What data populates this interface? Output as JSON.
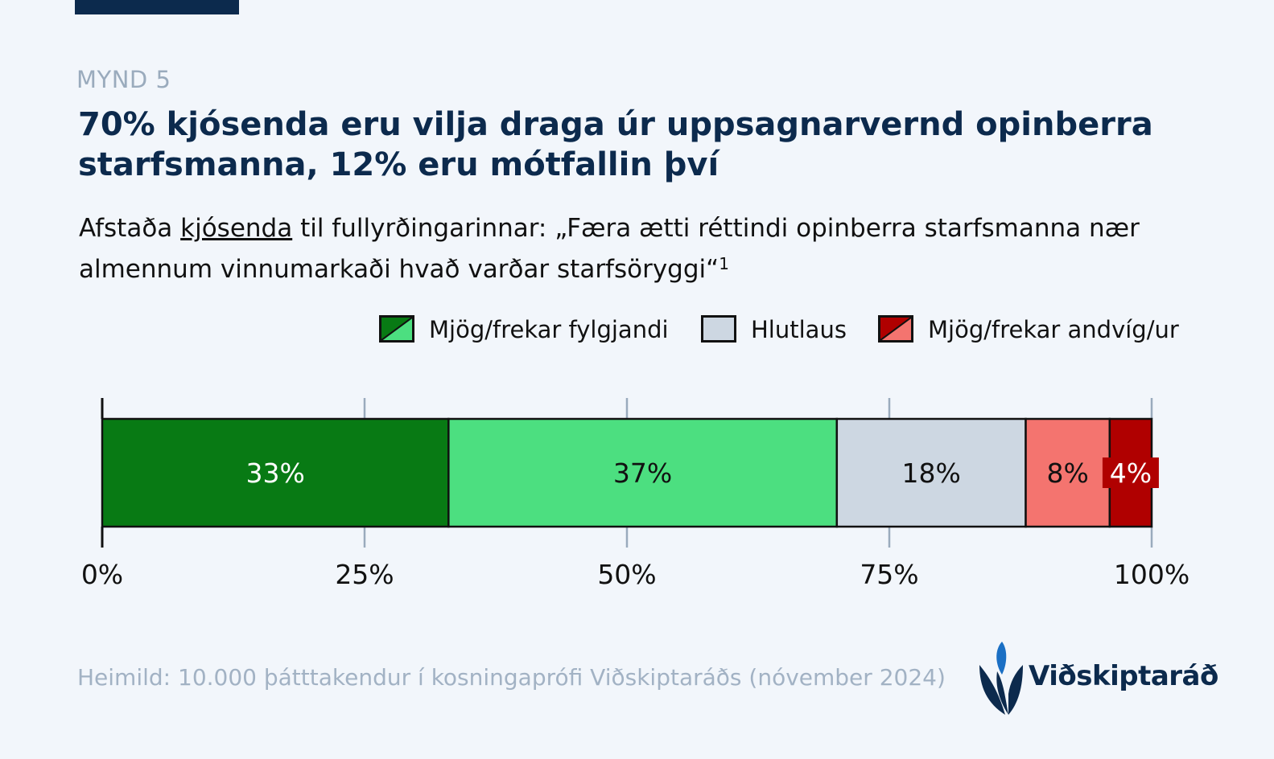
{
  "header": {
    "kicker": "MYND 5",
    "title": "70% kjósenda eru vilja draga úr uppsagnarvernd opinberra starfsmanna, 12% eru mótfallin því",
    "subtitle_pre": "Afstaða ",
    "subtitle_underlined": "kjósenda",
    "subtitle_post": " til fullyrðingarinnar: „Færa ætti réttindi opinberra starfsmanna nær almennum vinnumarkaði hvað varðar starfsöryggi“",
    "subtitle_footnote": "1"
  },
  "legend": [
    {
      "label": "Mjög/frekar fylgjandi",
      "colors": [
        "#087a14",
        "#4cdf80"
      ]
    },
    {
      "label": "Hlutlaus",
      "colors": [
        "#cdd7e2",
        "#cdd7e2"
      ]
    },
    {
      "label": "Mjög/frekar andvíg/ur",
      "colors": [
        "#b00000",
        "#f4746f"
      ]
    }
  ],
  "chart_data": {
    "type": "bar",
    "orientation": "horizontal",
    "stacked": true,
    "categories": [
      "Mjög fylgjandi",
      "Frekar fylgjandi",
      "Hlutlaus",
      "Frekar andvíg/ur",
      "Mjög andvíg/ur"
    ],
    "values": [
      33,
      37,
      18,
      8,
      4
    ],
    "labels": [
      "33%",
      "37%",
      "18%",
      "8%",
      "4%"
    ],
    "colors": [
      "#087a14",
      "#4cdf80",
      "#cdd7e2",
      "#f4746f",
      "#b00000"
    ],
    "label_colors": [
      "#ffffff",
      "#111111",
      "#111111",
      "#111111",
      "#ffffff"
    ],
    "xlim": [
      0,
      100
    ],
    "xticks": [
      0,
      25,
      50,
      75,
      100
    ],
    "xtick_labels": [
      "0%",
      "25%",
      "50%",
      "75%",
      "100%"
    ],
    "grid": false
  },
  "footer": {
    "source": "Heimild: 10.000 þátttakendur í kosningaprófi Viðskiptaráðs (nóvember 2024)",
    "logo_text": "Viðskiptaráð"
  }
}
